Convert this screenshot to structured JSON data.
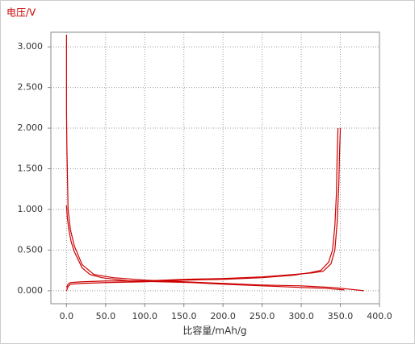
{
  "chart_data": {
    "type": "line",
    "y_label": "电压/V",
    "x_label": "比容量/mAh/g",
    "xlim": [
      -20,
      400
    ],
    "ylim": [
      -0.16,
      3.18
    ],
    "xticks": [
      {
        "value": 0,
        "label": "0.0"
      },
      {
        "value": 50,
        "label": "50.0"
      },
      {
        "value": 100,
        "label": "100.0"
      },
      {
        "value": 150,
        "label": "150.0"
      },
      {
        "value": 200,
        "label": "200.0"
      },
      {
        "value": 250,
        "label": "250.0"
      },
      {
        "value": 300,
        "label": "300.0"
      },
      {
        "value": 350,
        "label": "350.0"
      },
      {
        "value": 400,
        "label": "400.0"
      }
    ],
    "yticks": [
      {
        "value": 0,
        "label": "0.000"
      },
      {
        "value": 0.5,
        "label": "0.500"
      },
      {
        "value": 1,
        "label": "1.000"
      },
      {
        "value": 1.5,
        "label": "1.500"
      },
      {
        "value": 2,
        "label": "2.000"
      },
      {
        "value": 2.5,
        "label": "2.500"
      },
      {
        "value": 3,
        "label": "3.000"
      }
    ],
    "grid": true,
    "series": [
      {
        "color": "#cc0000",
        "x": [
          0,
          0,
          0.5,
          2,
          5,
          10,
          20,
          35,
          60,
          100,
          150,
          200,
          250,
          300,
          340,
          360,
          380
        ],
        "values": [
          3.15,
          2.2,
          1.75,
          1.0,
          0.75,
          0.55,
          0.32,
          0.2,
          0.16,
          0.13,
          0.11,
          0.09,
          0.07,
          0.06,
          0.04,
          0.02,
          0.0
        ]
      },
      {
        "color": "#cc0000",
        "x": [
          0,
          1,
          3,
          6,
          10,
          20,
          30,
          45,
          80,
          120,
          160,
          200,
          250,
          300,
          330,
          355
        ],
        "values": [
          1.05,
          0.9,
          0.75,
          0.6,
          0.48,
          0.28,
          0.2,
          0.16,
          0.12,
          0.11,
          0.1,
          0.08,
          0.06,
          0.04,
          0.03,
          0.01
        ]
      },
      {
        "color": "#cc0000",
        "x": [
          0,
          2,
          5,
          20,
          50,
          100,
          150,
          200,
          250,
          290,
          310,
          325,
          335,
          340,
          343,
          345,
          346,
          347
        ],
        "values": [
          0.0,
          0.05,
          0.08,
          0.09,
          0.1,
          0.11,
          0.13,
          0.14,
          0.16,
          0.19,
          0.22,
          0.25,
          0.35,
          0.5,
          0.8,
          1.2,
          1.7,
          2.0
        ]
      },
      {
        "color": "#cc0000",
        "x": [
          0,
          2,
          5,
          20,
          50,
          100,
          150,
          200,
          250,
          290,
          315,
          328,
          338,
          343,
          346,
          348,
          349,
          350
        ],
        "values": [
          0.04,
          0.08,
          0.1,
          0.11,
          0.12,
          0.12,
          0.14,
          0.15,
          0.17,
          0.2,
          0.22,
          0.24,
          0.33,
          0.5,
          0.85,
          1.3,
          1.7,
          2.0
        ]
      }
    ]
  }
}
